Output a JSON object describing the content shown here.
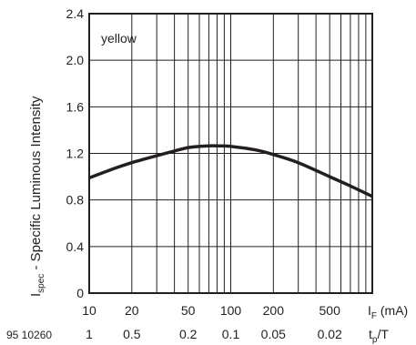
{
  "chart_data": {
    "type": "line",
    "xscale": "log",
    "xlim": [
      10,
      1000
    ],
    "ylim": [
      0,
      2.4
    ],
    "grid": true,
    "x_ticks": [
      "10",
      "20",
      "50",
      "100",
      "200",
      "500"
    ],
    "y_ticks": [
      "0",
      "0.4",
      "0.8",
      "1.2",
      "1.6",
      "2.0",
      "2.4"
    ],
    "secondary_x_ticks": [
      "1",
      "0.5",
      "0.2",
      "0.1",
      "0.05",
      "0.02"
    ],
    "xlabel_main": "I",
    "xlabel_sub": "F",
    "xlabel_unit": " (mA)",
    "secondary_xlabel_main": "t",
    "secondary_xlabel_sub": "p",
    "secondary_xlabel_tail": "/T",
    "ylabel_main": "I",
    "ylabel_sub": "spec",
    "ylabel_tail": " - Specific Luminous Intensity",
    "annotation": "yellow",
    "figure_number": "95 10260",
    "series": [
      {
        "x": [
          10,
          15,
          20,
          30,
          40,
          50,
          60,
          70,
          80,
          100,
          150,
          200,
          300,
          500,
          700,
          1000
        ],
        "y": [
          0.99,
          1.07,
          1.12,
          1.18,
          1.22,
          1.25,
          1.26,
          1.265,
          1.265,
          1.26,
          1.23,
          1.19,
          1.12,
          1.0,
          0.92,
          0.83
        ],
        "color": "#231f20"
      }
    ]
  }
}
